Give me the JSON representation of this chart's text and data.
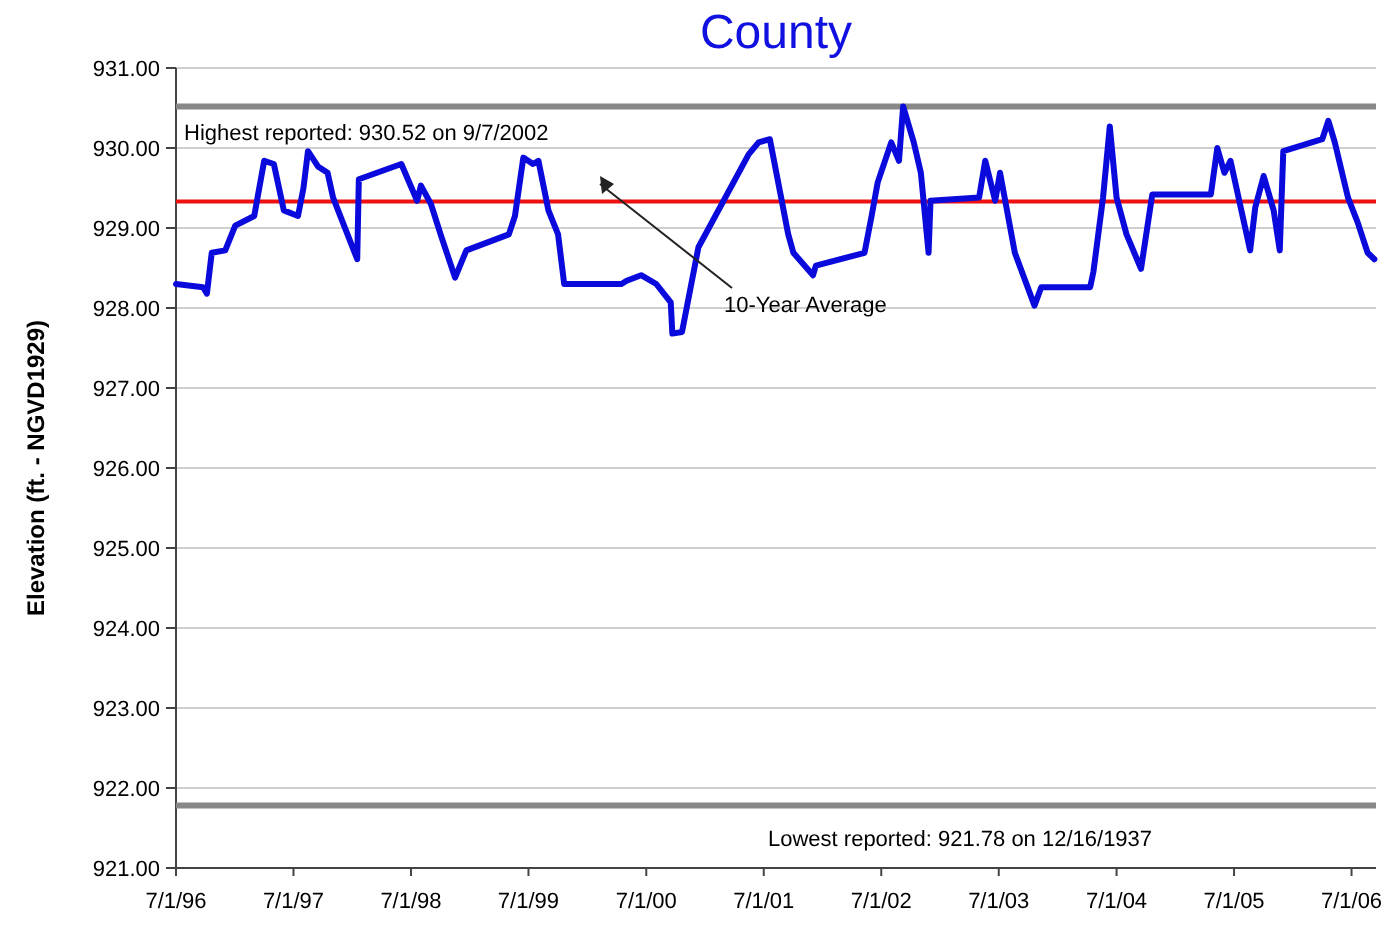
{
  "chart_data": {
    "type": "line",
    "title": "County",
    "ylabel": "Elevation (ft. - NGVD1929)",
    "xlim": [
      "1996-07-01",
      "2006-09-15"
    ],
    "xticks": [
      {
        "value": "1996-07-01",
        "label": "7/1/96"
      },
      {
        "value": "1997-07-01",
        "label": "7/1/97"
      },
      {
        "value": "1998-07-01",
        "label": "7/1/98"
      },
      {
        "value": "1999-07-01",
        "label": "7/1/99"
      },
      {
        "value": "2000-07-01",
        "label": "7/1/00"
      },
      {
        "value": "2001-07-01",
        "label": "7/1/01"
      },
      {
        "value": "2002-07-01",
        "label": "7/1/02"
      },
      {
        "value": "2003-07-01",
        "label": "7/1/03"
      },
      {
        "value": "2004-07-01",
        "label": "7/1/04"
      },
      {
        "value": "2005-07-01",
        "label": "7/1/05"
      },
      {
        "value": "2006-07-01",
        "label": "7/1/06"
      }
    ],
    "ylim": [
      921,
      931
    ],
    "yticks": [
      {
        "value": 921,
        "label": "921.00"
      },
      {
        "value": 922,
        "label": "922.00"
      },
      {
        "value": 923,
        "label": "923.00"
      },
      {
        "value": 924,
        "label": "924.00"
      },
      {
        "value": 925,
        "label": "925.00"
      },
      {
        "value": 926,
        "label": "926.00"
      },
      {
        "value": 927,
        "label": "927.00"
      },
      {
        "value": 928,
        "label": "928.00"
      },
      {
        "value": 929,
        "label": "929.00"
      },
      {
        "value": 930,
        "label": "930.00"
      },
      {
        "value": 931,
        "label": "931.00"
      }
    ],
    "annotations": [
      "10-Year Average"
    ],
    "grid": "y",
    "line_style": "solid",
    "marker": "none",
    "series": [
      {
        "color": "#0a0adc",
        "x": [
          "1996-07-01",
          "1996-09-23",
          "1996-10-05",
          "1996-10-20",
          "1996-12-01",
          "1997-01-01",
          "1997-03-01",
          "1997-04-01",
          "1997-05-01",
          "1997-06-01",
          "1997-07-15",
          "1997-08-01",
          "1997-08-15",
          "1997-09-15",
          "1997-10-15",
          "1997-11-01",
          "1998-01-15",
          "1998-01-20",
          "1998-06-01",
          "1998-07-20",
          "1998-08-01",
          "1998-09-01",
          "1998-10-01",
          "1998-11-15",
          "1998-12-20",
          "1999-05-01",
          "1999-05-20",
          "1999-06-15",
          "1999-07-15",
          "1999-08-01",
          "1999-09-01",
          "1999-10-01",
          "1999-10-20",
          "2000-04-15",
          "2000-05-01",
          "2000-06-15",
          "2000-08-01",
          "2000-09-15",
          "2000-09-20",
          "2000-10-20",
          "2000-12-10",
          "2001-05-15",
          "2001-06-15",
          "2001-07-20",
          "2001-09-15",
          "2001-10-01",
          "2001-12-01",
          "2001-12-10",
          "2002-05-10",
          "2002-06-01",
          "2002-06-20",
          "2002-08-01",
          "2002-08-25",
          "2002-09-07",
          "2002-10-10",
          "2002-11-01",
          "2002-11-25",
          "2002-12-01",
          "2003-05-01",
          "2003-05-20",
          "2003-06-20",
          "2003-07-05",
          "2003-08-20",
          "2003-10-20",
          "2003-11-10",
          "2004-04-10",
          "2004-04-20",
          "2004-05-20",
          "2004-06-10",
          "2004-07-01",
          "2004-08-01",
          "2004-09-15",
          "2004-10-20",
          "2005-04-20",
          "2005-05-10",
          "2005-06-01",
          "2005-06-20",
          "2005-08-20",
          "2005-09-05",
          "2005-10-01",
          "2005-11-01",
          "2005-11-20",
          "2005-12-01",
          "2006-04-01",
          "2006-04-20",
          "2006-05-10",
          "2006-06-20",
          "2006-07-20",
          "2006-08-20",
          "2006-09-10"
        ],
        "values": [
          928.3,
          928.26,
          928.18,
          928.69,
          928.72,
          929.03,
          929.15,
          929.84,
          929.8,
          929.22,
          929.15,
          929.5,
          929.96,
          929.77,
          929.69,
          929.38,
          928.61,
          929.61,
          929.8,
          929.34,
          929.53,
          929.3,
          928.92,
          928.38,
          928.72,
          928.92,
          929.15,
          929.88,
          929.8,
          929.84,
          929.22,
          928.92,
          928.3,
          928.3,
          928.34,
          928.41,
          928.3,
          928.07,
          927.68,
          927.7,
          928.76,
          929.92,
          930.07,
          930.11,
          928.92,
          928.69,
          928.41,
          928.53,
          928.69,
          929.15,
          929.57,
          930.07,
          929.84,
          930.52,
          930.07,
          929.69,
          928.69,
          929.34,
          929.38,
          929.84,
          929.34,
          929.69,
          928.69,
          928.03,
          928.26,
          928.26,
          928.45,
          929.38,
          930.27,
          929.38,
          928.92,
          928.49,
          929.42,
          929.42,
          930.0,
          929.69,
          929.84,
          928.72,
          929.26,
          929.65,
          929.22,
          928.72,
          929.96,
          930.11,
          930.34,
          930.07,
          929.38,
          929.07,
          928.69,
          928.61
        ]
      }
    ],
    "ref_lines": [
      {
        "axis": "y",
        "value": 930.52,
        "label": "Highest reported:  930.52 on 9/7/2002",
        "color": "#888888"
      },
      {
        "axis": "y",
        "value": 929.33,
        "color": "#ee1111"
      },
      {
        "axis": "y",
        "value": 921.78,
        "label": "Lowest reported:  921.78 on 12/16/1937",
        "color": "#888888"
      }
    ]
  }
}
